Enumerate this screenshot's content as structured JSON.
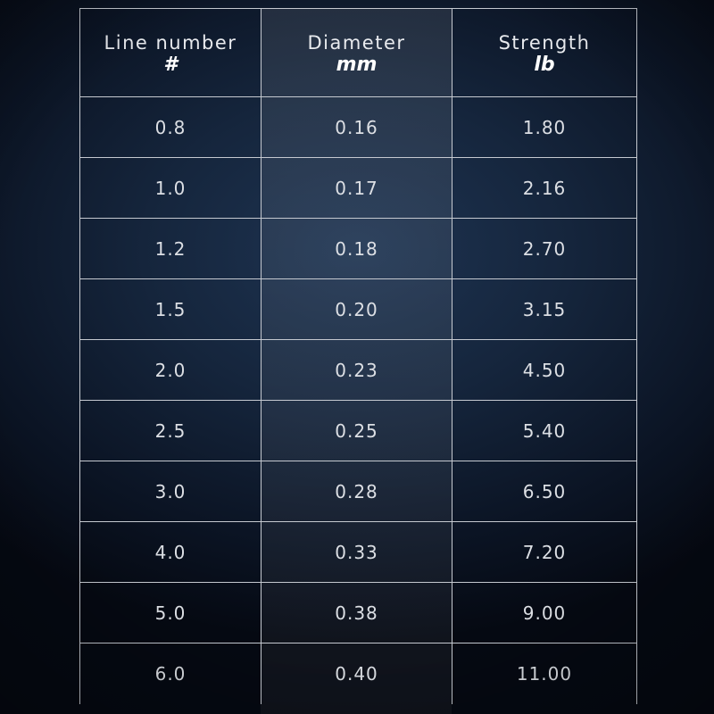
{
  "table": {
    "headers": [
      {
        "label": "Line number",
        "unit": "#"
      },
      {
        "label": "Diameter",
        "unit": "mm"
      },
      {
        "label": "Strength",
        "unit": "lb"
      }
    ],
    "rows": [
      [
        "0.8",
        "0.16",
        "1.80"
      ],
      [
        "1.0",
        "0.17",
        "2.16"
      ],
      [
        "1.2",
        "0.18",
        "2.70"
      ],
      [
        "1.5",
        "0.20",
        "3.15"
      ],
      [
        "2.0",
        "0.23",
        "4.50"
      ],
      [
        "2.5",
        "0.25",
        "5.40"
      ],
      [
        "3.0",
        "0.28",
        "6.50"
      ],
      [
        "4.0",
        "0.33",
        "7.20"
      ],
      [
        "5.0",
        "0.38",
        "9.00"
      ],
      [
        "6.0",
        "0.40",
        "11.00"
      ]
    ]
  },
  "colors": {
    "background": "#15253c",
    "grid_line": "#c5c9d0",
    "text": "#dcdfe4",
    "highlight_column": "rgba(255,255,255,0.08)"
  }
}
